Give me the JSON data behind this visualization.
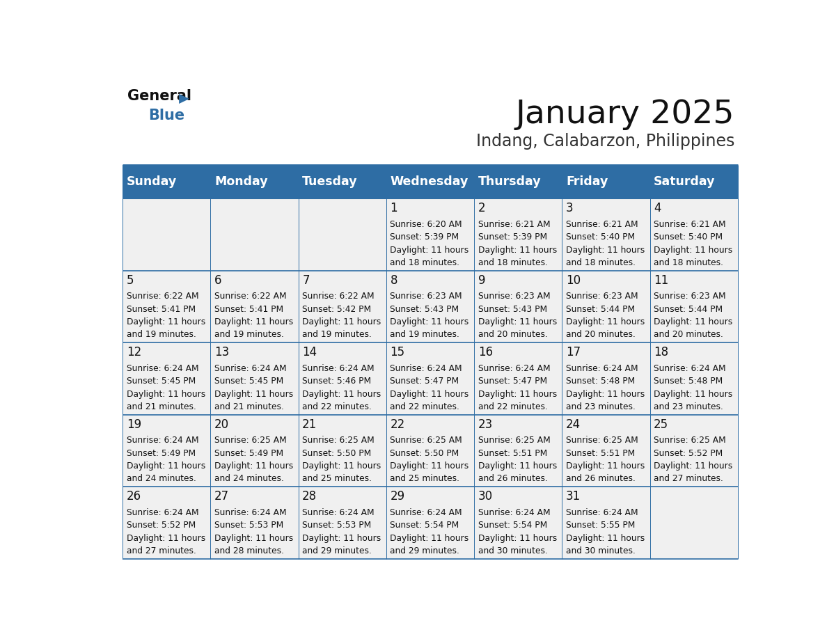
{
  "title": "January 2025",
  "subtitle": "Indang, Calabarzon, Philippines",
  "header_bg": "#2E6DA4",
  "header_text_color": "#FFFFFF",
  "cell_bg_light": "#F0F0F0",
  "border_color": "#2E6DA4",
  "day_names": [
    "Sunday",
    "Monday",
    "Tuesday",
    "Wednesday",
    "Thursday",
    "Friday",
    "Saturday"
  ],
  "days": [
    {
      "day": 1,
      "col": 3,
      "row": 0,
      "sunrise": "6:20 AM",
      "sunset": "5:39 PM",
      "daylight_a": "11 hours",
      "daylight_b": "and 18 minutes."
    },
    {
      "day": 2,
      "col": 4,
      "row": 0,
      "sunrise": "6:21 AM",
      "sunset": "5:39 PM",
      "daylight_a": "11 hours",
      "daylight_b": "and 18 minutes."
    },
    {
      "day": 3,
      "col": 5,
      "row": 0,
      "sunrise": "6:21 AM",
      "sunset": "5:40 PM",
      "daylight_a": "11 hours",
      "daylight_b": "and 18 minutes."
    },
    {
      "day": 4,
      "col": 6,
      "row": 0,
      "sunrise": "6:21 AM",
      "sunset": "5:40 PM",
      "daylight_a": "11 hours",
      "daylight_b": "and 18 minutes."
    },
    {
      "day": 5,
      "col": 0,
      "row": 1,
      "sunrise": "6:22 AM",
      "sunset": "5:41 PM",
      "daylight_a": "11 hours",
      "daylight_b": "and 19 minutes."
    },
    {
      "day": 6,
      "col": 1,
      "row": 1,
      "sunrise": "6:22 AM",
      "sunset": "5:41 PM",
      "daylight_a": "11 hours",
      "daylight_b": "and 19 minutes."
    },
    {
      "day": 7,
      "col": 2,
      "row": 1,
      "sunrise": "6:22 AM",
      "sunset": "5:42 PM",
      "daylight_a": "11 hours",
      "daylight_b": "and 19 minutes."
    },
    {
      "day": 8,
      "col": 3,
      "row": 1,
      "sunrise": "6:23 AM",
      "sunset": "5:43 PM",
      "daylight_a": "11 hours",
      "daylight_b": "and 19 minutes."
    },
    {
      "day": 9,
      "col": 4,
      "row": 1,
      "sunrise": "6:23 AM",
      "sunset": "5:43 PM",
      "daylight_a": "11 hours",
      "daylight_b": "and 20 minutes."
    },
    {
      "day": 10,
      "col": 5,
      "row": 1,
      "sunrise": "6:23 AM",
      "sunset": "5:44 PM",
      "daylight_a": "11 hours",
      "daylight_b": "and 20 minutes."
    },
    {
      "day": 11,
      "col": 6,
      "row": 1,
      "sunrise": "6:23 AM",
      "sunset": "5:44 PM",
      "daylight_a": "11 hours",
      "daylight_b": "and 20 minutes."
    },
    {
      "day": 12,
      "col": 0,
      "row": 2,
      "sunrise": "6:24 AM",
      "sunset": "5:45 PM",
      "daylight_a": "11 hours",
      "daylight_b": "and 21 minutes."
    },
    {
      "day": 13,
      "col": 1,
      "row": 2,
      "sunrise": "6:24 AM",
      "sunset": "5:45 PM",
      "daylight_a": "11 hours",
      "daylight_b": "and 21 minutes."
    },
    {
      "day": 14,
      "col": 2,
      "row": 2,
      "sunrise": "6:24 AM",
      "sunset": "5:46 PM",
      "daylight_a": "11 hours",
      "daylight_b": "and 22 minutes."
    },
    {
      "day": 15,
      "col": 3,
      "row": 2,
      "sunrise": "6:24 AM",
      "sunset": "5:47 PM",
      "daylight_a": "11 hours",
      "daylight_b": "and 22 minutes."
    },
    {
      "day": 16,
      "col": 4,
      "row": 2,
      "sunrise": "6:24 AM",
      "sunset": "5:47 PM",
      "daylight_a": "11 hours",
      "daylight_b": "and 22 minutes."
    },
    {
      "day": 17,
      "col": 5,
      "row": 2,
      "sunrise": "6:24 AM",
      "sunset": "5:48 PM",
      "daylight_a": "11 hours",
      "daylight_b": "and 23 minutes."
    },
    {
      "day": 18,
      "col": 6,
      "row": 2,
      "sunrise": "6:24 AM",
      "sunset": "5:48 PM",
      "daylight_a": "11 hours",
      "daylight_b": "and 23 minutes."
    },
    {
      "day": 19,
      "col": 0,
      "row": 3,
      "sunrise": "6:24 AM",
      "sunset": "5:49 PM",
      "daylight_a": "11 hours",
      "daylight_b": "and 24 minutes."
    },
    {
      "day": 20,
      "col": 1,
      "row": 3,
      "sunrise": "6:25 AM",
      "sunset": "5:49 PM",
      "daylight_a": "11 hours",
      "daylight_b": "and 24 minutes."
    },
    {
      "day": 21,
      "col": 2,
      "row": 3,
      "sunrise": "6:25 AM",
      "sunset": "5:50 PM",
      "daylight_a": "11 hours",
      "daylight_b": "and 25 minutes."
    },
    {
      "day": 22,
      "col": 3,
      "row": 3,
      "sunrise": "6:25 AM",
      "sunset": "5:50 PM",
      "daylight_a": "11 hours",
      "daylight_b": "and 25 minutes."
    },
    {
      "day": 23,
      "col": 4,
      "row": 3,
      "sunrise": "6:25 AM",
      "sunset": "5:51 PM",
      "daylight_a": "11 hours",
      "daylight_b": "and 26 minutes."
    },
    {
      "day": 24,
      "col": 5,
      "row": 3,
      "sunrise": "6:25 AM",
      "sunset": "5:51 PM",
      "daylight_a": "11 hours",
      "daylight_b": "and 26 minutes."
    },
    {
      "day": 25,
      "col": 6,
      "row": 3,
      "sunrise": "6:25 AM",
      "sunset": "5:52 PM",
      "daylight_a": "11 hours",
      "daylight_b": "and 27 minutes."
    },
    {
      "day": 26,
      "col": 0,
      "row": 4,
      "sunrise": "6:24 AM",
      "sunset": "5:52 PM",
      "daylight_a": "11 hours",
      "daylight_b": "and 27 minutes."
    },
    {
      "day": 27,
      "col": 1,
      "row": 4,
      "sunrise": "6:24 AM",
      "sunset": "5:53 PM",
      "daylight_a": "11 hours",
      "daylight_b": "and 28 minutes."
    },
    {
      "day": 28,
      "col": 2,
      "row": 4,
      "sunrise": "6:24 AM",
      "sunset": "5:53 PM",
      "daylight_a": "11 hours",
      "daylight_b": "and 29 minutes."
    },
    {
      "day": 29,
      "col": 3,
      "row": 4,
      "sunrise": "6:24 AM",
      "sunset": "5:54 PM",
      "daylight_a": "11 hours",
      "daylight_b": "and 29 minutes."
    },
    {
      "day": 30,
      "col": 4,
      "row": 4,
      "sunrise": "6:24 AM",
      "sunset": "5:54 PM",
      "daylight_a": "11 hours",
      "daylight_b": "and 30 minutes."
    },
    {
      "day": 31,
      "col": 5,
      "row": 4,
      "sunrise": "6:24 AM",
      "sunset": "5:55 PM",
      "daylight_a": "11 hours",
      "daylight_b": "and 30 minutes."
    }
  ]
}
